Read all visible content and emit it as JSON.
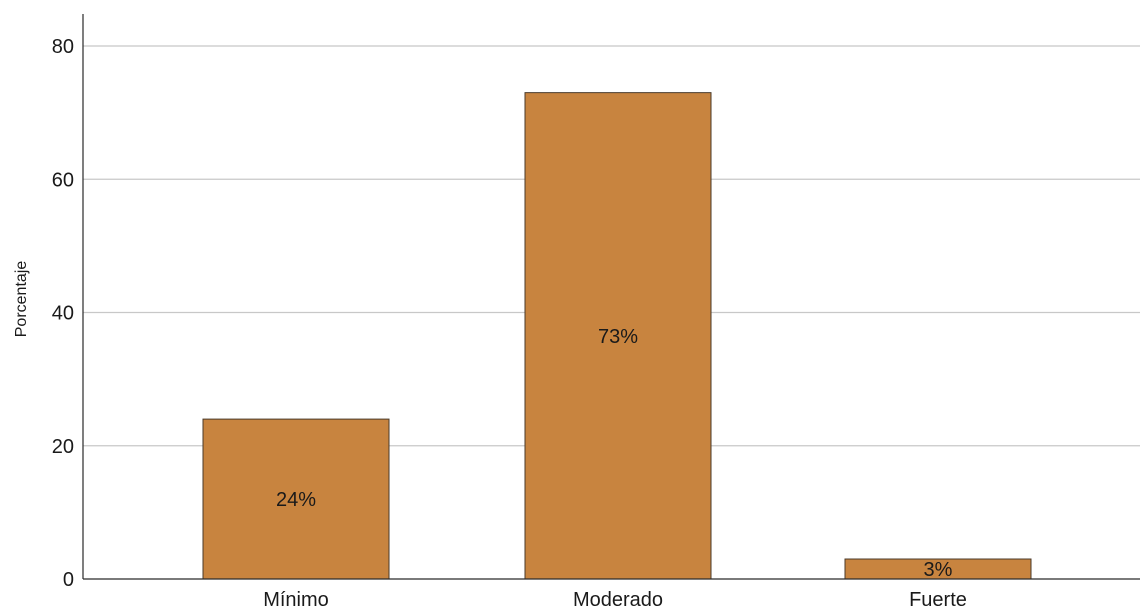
{
  "chart_data": {
    "type": "bar",
    "categories": [
      "Mínimo",
      "Moderado",
      "Fuerte"
    ],
    "values": [
      24,
      73,
      3
    ],
    "data_labels": [
      "24%",
      "73%",
      "3%"
    ],
    "title": "",
    "xlabel": "",
    "ylabel": "Porcentaje",
    "ylim": [
      0,
      80
    ],
    "yticks": [
      0,
      20,
      40,
      60,
      80
    ],
    "ytick_labels": [
      "0",
      "20",
      "40",
      "60",
      "80"
    ],
    "grid": "horizontal",
    "legend": "none",
    "bar_color": "#c8843f",
    "bar_edge_color": "#4a3a2a",
    "grid_color": "#c8c8c8"
  }
}
